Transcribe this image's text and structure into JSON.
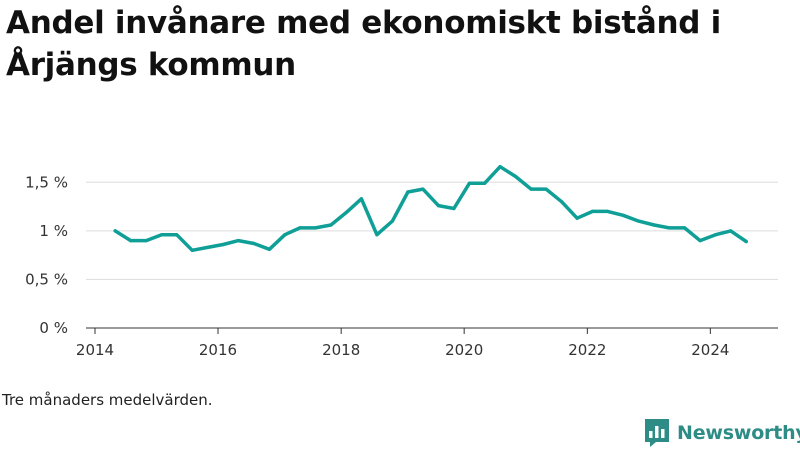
{
  "header": {
    "title": "Andel invånare med ekonomiskt bistånd i Årjängs kommun"
  },
  "footer": {
    "note": "Tre månaders medelvärden.",
    "brand": "Newsworthy"
  },
  "colors": {
    "line": "#0f9f97",
    "grid": "#dddddd",
    "brand": "#2d8c86"
  },
  "icons": {
    "brand_logo": "bar-chart-speech-bubble-icon"
  },
  "chart_data": {
    "type": "line",
    "title": "Andel invånare med ekonomiskt bistånd i Årjängs kommun",
    "xlabel": "",
    "ylabel": "",
    "x_ticks": [
      "2014",
      "2016",
      "2018",
      "2020",
      "2022",
      "2024"
    ],
    "y_ticks": [
      "0 %",
      "0,5 %",
      "1 %",
      "1,5 %"
    ],
    "y_tick_values": [
      0,
      0.5,
      1,
      1.5
    ],
    "xlim": [
      "2014-01-01",
      "2025-01-01"
    ],
    "ylim": [
      0,
      1.75
    ],
    "grid": "horizontal",
    "legend": "none",
    "x": [
      "2014-05-01",
      "2014-08-01",
      "2014-11-01",
      "2015-02-01",
      "2015-05-01",
      "2015-08-01",
      "2015-11-01",
      "2016-02-01",
      "2016-05-01",
      "2016-08-01",
      "2016-11-01",
      "2017-02-01",
      "2017-05-01",
      "2017-08-01",
      "2017-11-01",
      "2018-02-01",
      "2018-05-01",
      "2018-08-01",
      "2018-11-01",
      "2019-02-01",
      "2019-05-01",
      "2019-08-01",
      "2019-11-01",
      "2020-02-01",
      "2020-05-01",
      "2020-08-01",
      "2020-11-01",
      "2021-02-01",
      "2021-05-01",
      "2021-08-01",
      "2021-11-01",
      "2022-02-01",
      "2022-05-01",
      "2022-08-01",
      "2022-11-01",
      "2023-02-01",
      "2023-05-01",
      "2023-08-01",
      "2023-11-01",
      "2024-02-01",
      "2024-05-01",
      "2024-08-01"
    ],
    "y": [
      1.0,
      0.9,
      0.9,
      0.96,
      0.96,
      0.8,
      0.83,
      0.86,
      0.9,
      0.87,
      0.81,
      0.96,
      1.03,
      1.03,
      1.06,
      1.19,
      1.33,
      0.96,
      1.1,
      1.4,
      1.43,
      1.26,
      1.23,
      1.49,
      1.49,
      1.66,
      1.56,
      1.43,
      1.43,
      1.3,
      1.13,
      1.2,
      1.2,
      1.16,
      1.1,
      1.06,
      1.03,
      1.03,
      0.9,
      0.96,
      1.0,
      0.89
    ]
  }
}
